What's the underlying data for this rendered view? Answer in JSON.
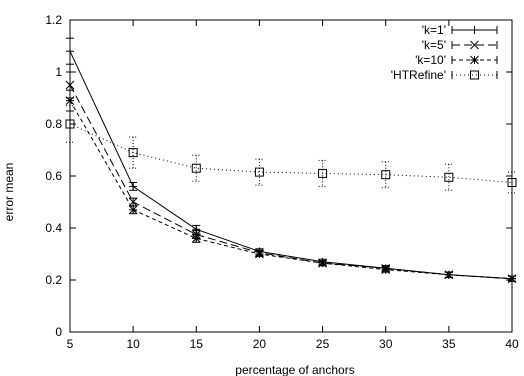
{
  "chart_data": {
    "type": "line",
    "xlabel": "percentage of anchors",
    "ylabel": "error mean",
    "xlim": [
      5,
      40
    ],
    "ylim": [
      0,
      1.2
    ],
    "xticks": [
      "5",
      "10",
      "15",
      "20",
      "25",
      "30",
      "35",
      "40"
    ],
    "yticks": [
      "0",
      "0.2",
      "0.4",
      "0.6",
      "0.8",
      "1",
      "1.2"
    ],
    "grid": false,
    "legend_position": "top-right",
    "x": [
      5,
      10,
      15,
      20,
      25,
      30,
      35,
      40
    ],
    "series": [
      {
        "name": "'k=1'",
        "marker": "plus",
        "dash": "",
        "values": [
          1.08,
          0.56,
          0.395,
          0.31,
          0.27,
          0.245,
          0.22,
          0.205
        ],
        "err": [
          0.05,
          0.015,
          0.015,
          0.01,
          0.01,
          0.01,
          0.01,
          0.01
        ]
      },
      {
        "name": "'k=5'",
        "marker": "cross",
        "dash": "8,4",
        "values": [
          0.95,
          0.5,
          0.375,
          0.305,
          0.265,
          0.245,
          0.22,
          0.205
        ],
        "err": [
          0.05,
          0.015,
          0.015,
          0.01,
          0.01,
          0.01,
          0.01,
          0.01
        ]
      },
      {
        "name": "'k=10'",
        "marker": "star",
        "dash": "4,3",
        "values": [
          0.89,
          0.47,
          0.36,
          0.3,
          0.265,
          0.24,
          0.22,
          0.205
        ],
        "err": [
          0.04,
          0.015,
          0.015,
          0.01,
          0.01,
          0.01,
          0.01,
          0.01
        ]
      },
      {
        "name": "'HTRefine'",
        "marker": "square",
        "dash": "1,3",
        "values": [
          0.8,
          0.69,
          0.63,
          0.615,
          0.61,
          0.605,
          0.595,
          0.575
        ],
        "err": [
          0.07,
          0.06,
          0.05,
          0.05,
          0.05,
          0.05,
          0.05,
          0.04
        ]
      }
    ]
  }
}
